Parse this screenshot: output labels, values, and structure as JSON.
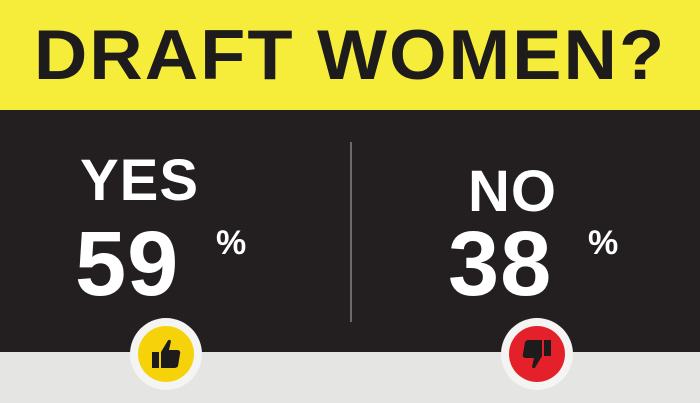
{
  "header": {
    "title": "DRAFT WOMEN?"
  },
  "results": {
    "yes": {
      "label": "YES",
      "percent": "59",
      "percent_symbol": "%"
    },
    "no": {
      "label": "NO",
      "percent": "38",
      "percent_symbol": "%"
    }
  },
  "icons": {
    "yes": "thumbs-up-icon",
    "no": "thumbs-down-icon"
  },
  "colors": {
    "banner": "#f6ec3a",
    "panel": "#231f20",
    "yes_accent": "#f6d20a",
    "no_accent": "#e4202a"
  }
}
